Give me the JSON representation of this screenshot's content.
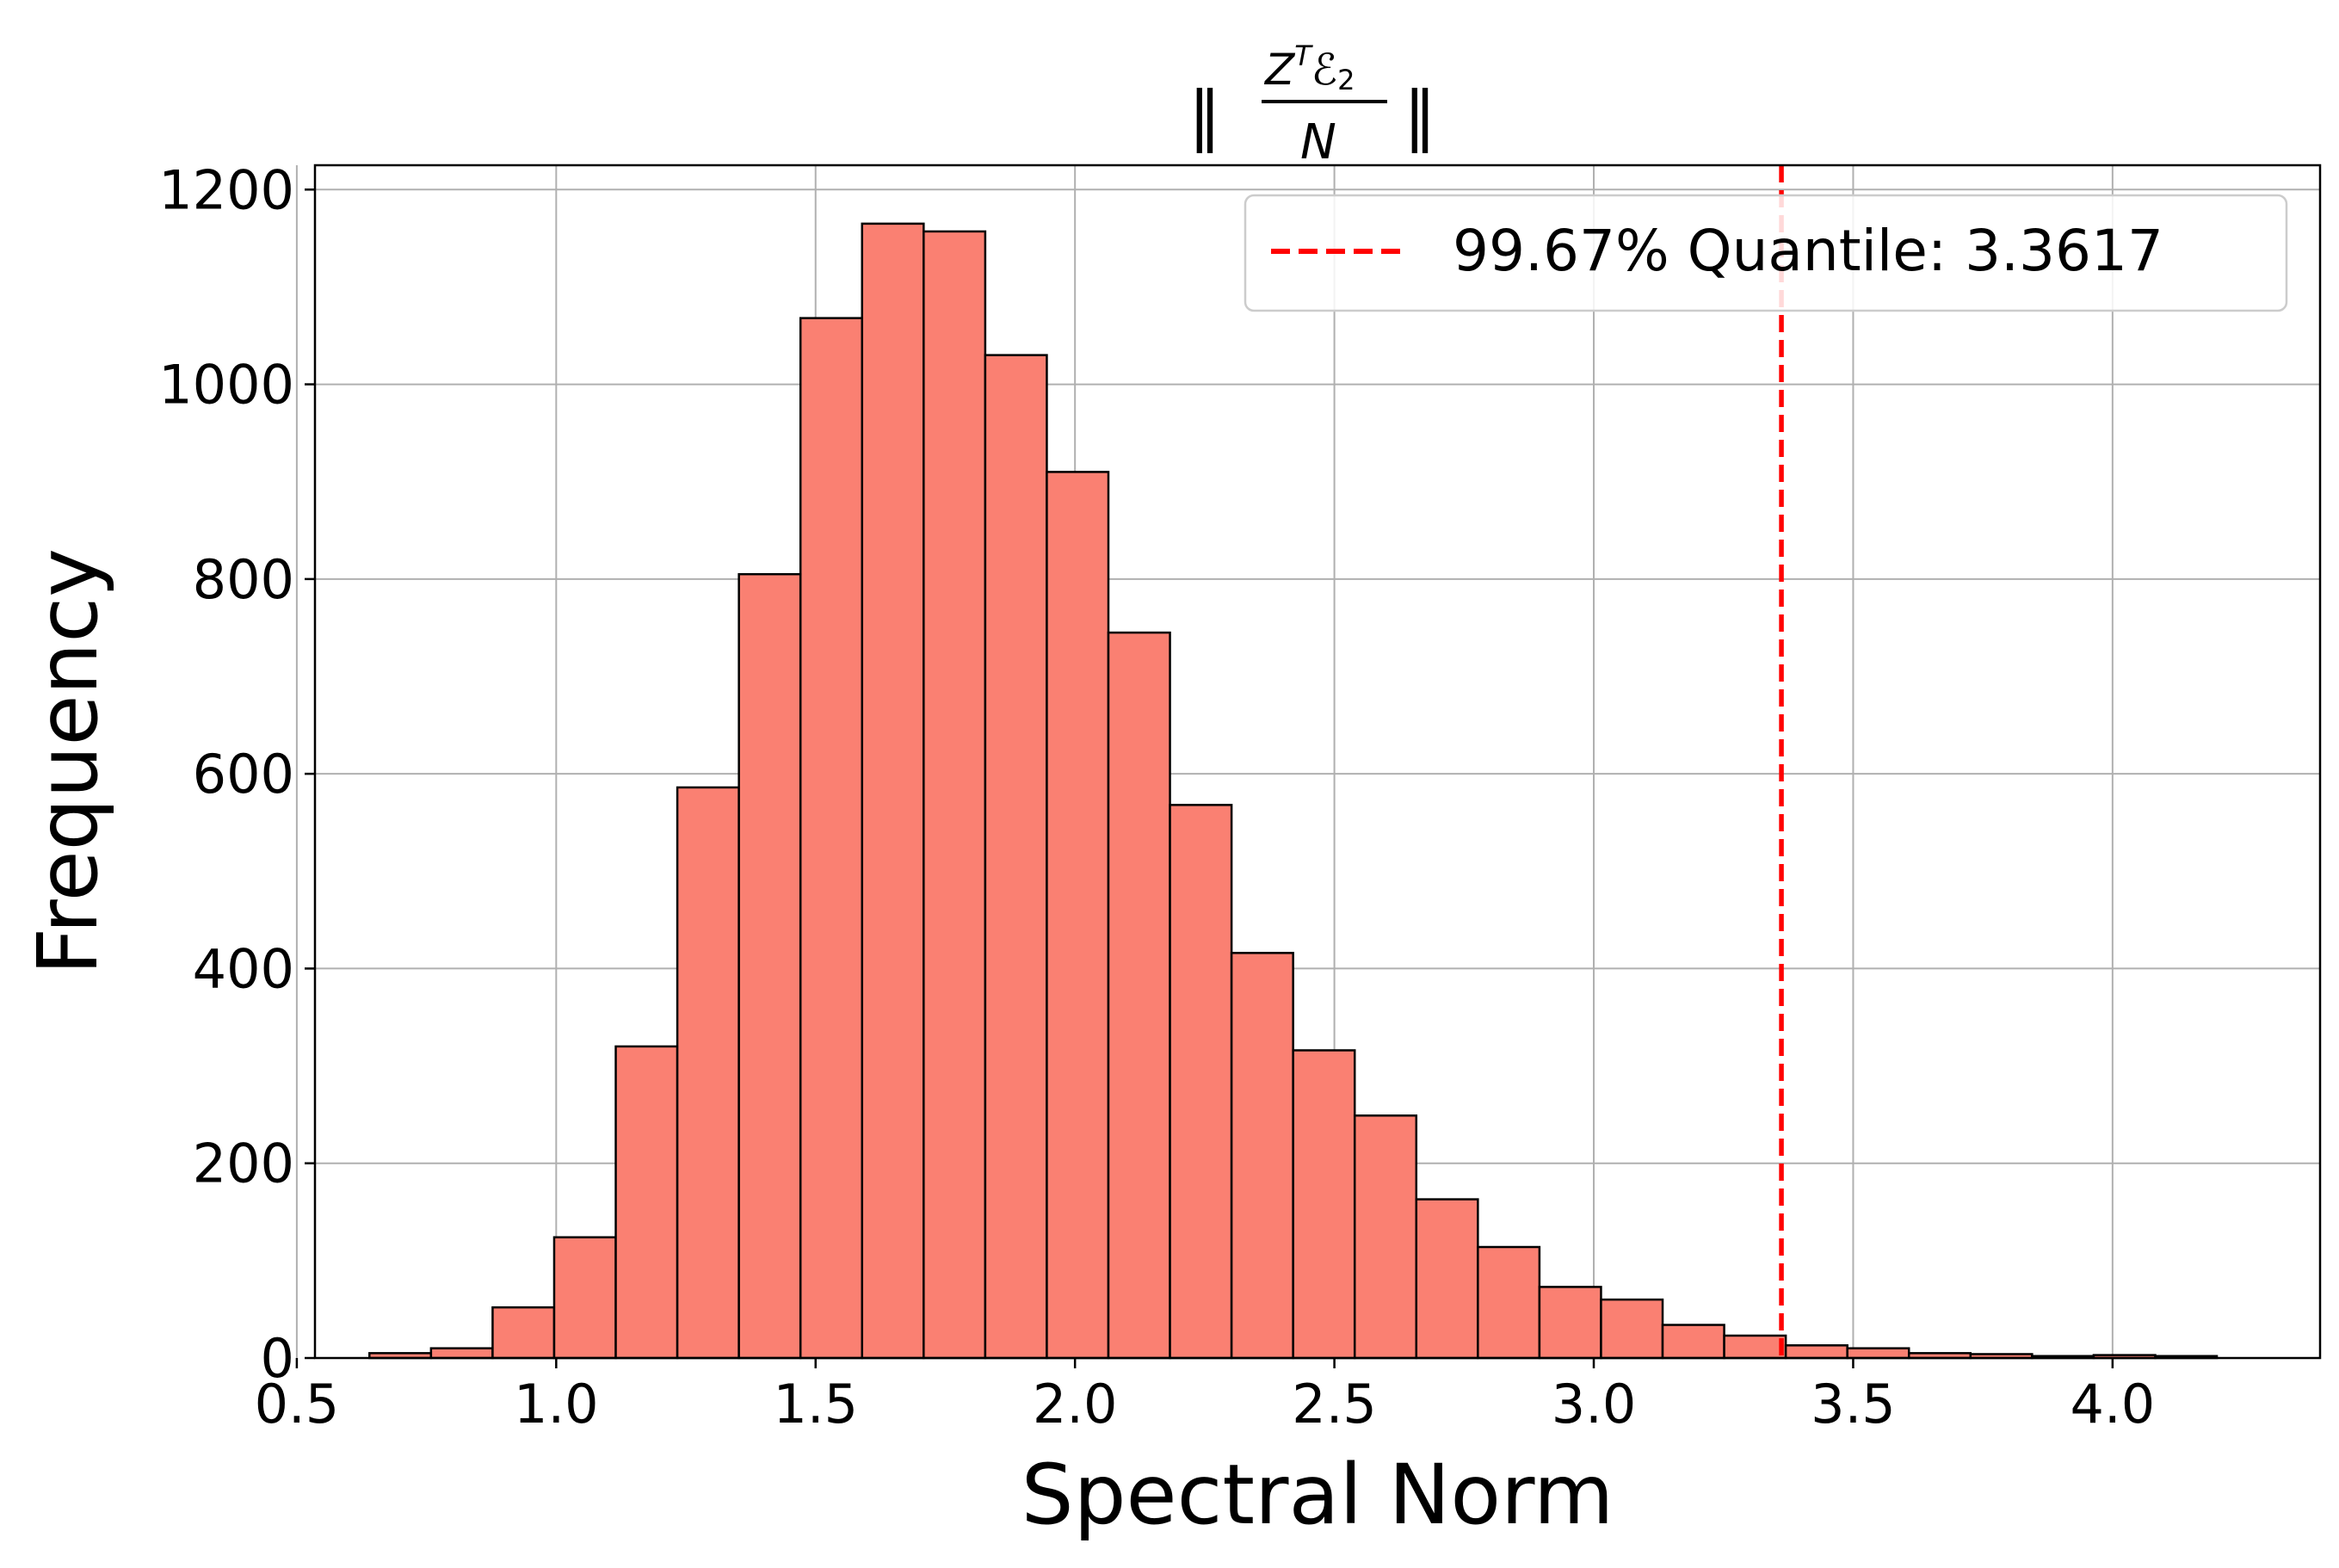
{
  "chart_data": {
    "type": "bar",
    "title_parts": {
      "numerator": "Z",
      "numerator_superscript": "T",
      "numerator_symbol": "ℰ",
      "numerator_subscript": "2",
      "denominator": "N",
      "norm_left": "‖",
      "norm_right": "‖"
    },
    "xlabel": "Spectral Norm",
    "ylabel": "Frequency",
    "xlim": [
      0.535,
      4.4
    ],
    "ylim": [
      0,
      1225
    ],
    "xticks": [
      "0.5",
      "1.0",
      "1.5",
      "2.0",
      "2.5",
      "3.0",
      "3.5",
      "4.0"
    ],
    "yticks": [
      "0",
      "200",
      "400",
      "600",
      "800",
      "1000",
      "1200"
    ],
    "bin_start": 0.64,
    "bin_width": 0.1187,
    "values": [
      5,
      10,
      52,
      124,
      320,
      586,
      805,
      1068,
      1165,
      1157,
      1030,
      910,
      745,
      568,
      416,
      316,
      249,
      163,
      114,
      73,
      60,
      34,
      23,
      13,
      10,
      5,
      4,
      2,
      3,
      2
    ],
    "bar_color": "#fa8072",
    "edge_color": "#000000",
    "grid": true,
    "quantile_line": {
      "x": 3.3617,
      "color": "#ff0000",
      "label": "99.67% Quantile: 3.3617"
    },
    "legend_position": "top-right"
  }
}
